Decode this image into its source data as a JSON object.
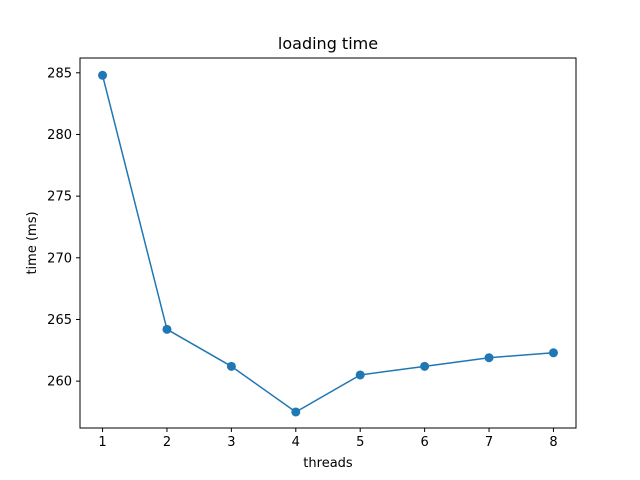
{
  "chart_data": {
    "type": "line",
    "title": "loading time",
    "xlabel": "threads",
    "ylabel": "time (ms)",
    "x": [
      1,
      2,
      3,
      4,
      5,
      6,
      7,
      8
    ],
    "xticks": [
      "1",
      "2",
      "3",
      "4",
      "5",
      "6",
      "7",
      "8"
    ],
    "yticks": [
      260,
      265,
      270,
      275,
      280,
      285
    ],
    "ytick_labels": [
      "260",
      "265",
      "270",
      "275",
      "280",
      "285"
    ],
    "xlim": [
      0.65,
      8.35
    ],
    "ylim": [
      256.2,
      286.2
    ],
    "grid": false,
    "series": [
      {
        "values": [
          284.8,
          264.2,
          261.2,
          257.5,
          260.5,
          261.2,
          261.9,
          262.3
        ],
        "color": "#1f77b4",
        "marker": "circle"
      }
    ]
  }
}
